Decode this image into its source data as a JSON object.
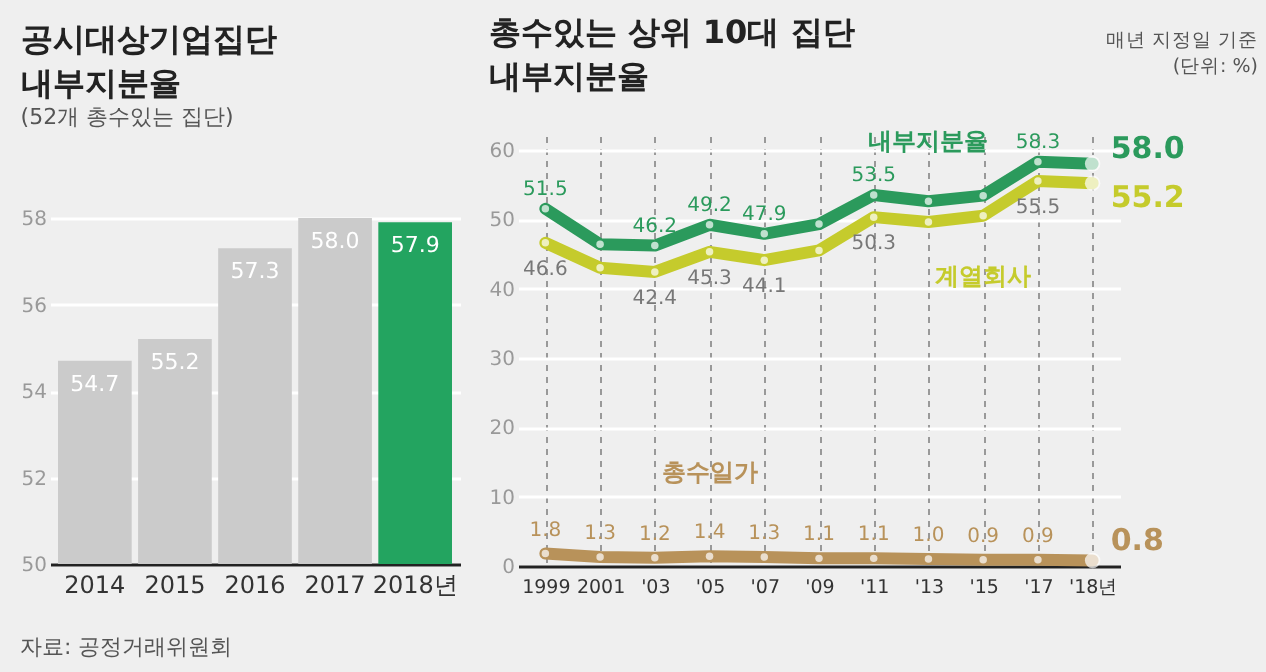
{
  "chart_data": [
    {
      "type": "bar",
      "title": "공시대상기업집단 내부지분율",
      "subtitle": "(52개 총수있는 집단)",
      "categories": [
        "2014",
        "2015",
        "2016",
        "2017",
        "2018년"
      ],
      "values": [
        54.7,
        55.2,
        57.3,
        58.0,
        57.9
      ],
      "colors": [
        "#cbcbcb",
        "#cbcbcb",
        "#cbcbcb",
        "#cbcbcb",
        "#23a460"
      ],
      "value_labels": [
        "54.7",
        "55.2",
        "57.3",
        "58.0",
        "57.9"
      ],
      "ylim": [
        50,
        58
      ],
      "yticks": [
        50,
        52,
        54,
        56,
        58
      ],
      "grid": "y",
      "annotations": [
        "자료: 공정거래위원회"
      ]
    },
    {
      "type": "line",
      "title": "총수있는 상위 10대 집단 내부지분율",
      "categories": [
        "1999",
        "2001",
        "'03",
        "'05",
        "'07",
        "'09",
        "'11",
        "'13",
        "'15",
        "'17",
        "'18년"
      ],
      "series": [
        {
          "name": "내부지분율",
          "color": "#2b9a5c",
          "values": [
            51.5,
            46.4,
            46.2,
            49.2,
            47.9,
            49.3,
            53.5,
            52.6,
            53.4,
            58.3,
            58.0
          ],
          "value_labels": [
            "51.5",
            null,
            "46.2",
            "49.2",
            "47.9",
            null,
            "53.5",
            null,
            null,
            "58.3",
            "58.0"
          ]
        },
        {
          "name": "계열회사",
          "color": "#c5cb2c",
          "values": [
            46.6,
            43.0,
            42.4,
            45.3,
            44.1,
            45.5,
            50.3,
            49.6,
            50.5,
            55.5,
            55.2
          ],
          "value_labels": [
            "46.6",
            null,
            "42.4",
            "45.3",
            "44.1",
            null,
            "50.3",
            null,
            null,
            "55.5",
            "55.2"
          ]
        },
        {
          "name": "총수일가",
          "color": "#b8925a",
          "values": [
            1.8,
            1.3,
            1.2,
            1.4,
            1.3,
            1.1,
            1.1,
            1.0,
            0.9,
            0.9,
            0.8
          ],
          "value_labels": [
            "1.8",
            "1.3",
            "1.2",
            "1.4",
            "1.3",
            "1.1",
            "1.1",
            "1.0",
            "0.9",
            "0.9",
            "0.8"
          ]
        }
      ],
      "ylim": [
        0,
        62
      ],
      "yticks": [
        0,
        10,
        20,
        30,
        40,
        50,
        60
      ],
      "grid": true,
      "marker": "circle",
      "line_style": "solid",
      "legend": false,
      "annotations": [
        "매년 지정일 기준 (단위: %)"
      ]
    }
  ]
}
